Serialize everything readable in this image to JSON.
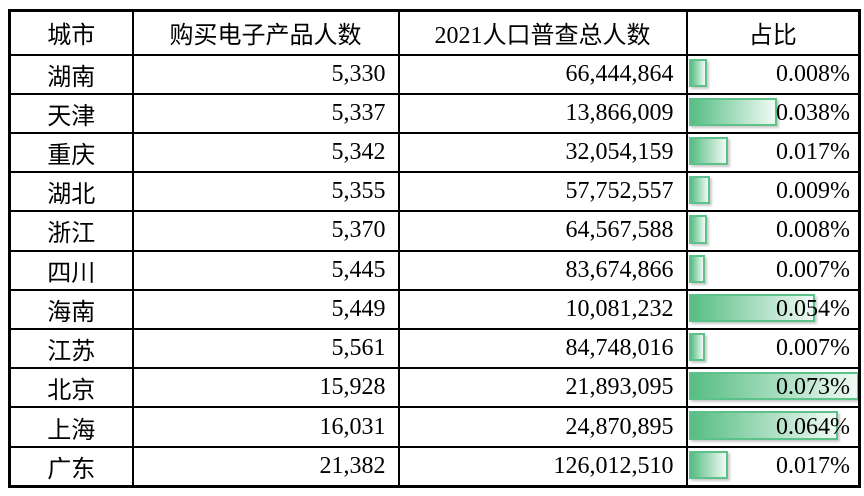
{
  "page": {
    "background_color": "#ffffff",
    "text_color": "#000000",
    "grid_color": "#000000"
  },
  "table": {
    "columns": [
      {
        "key": "city",
        "label": "城市"
      },
      {
        "key": "buyers",
        "label": "购买电子产品人数"
      },
      {
        "key": "population",
        "label": "2021人口普查总人数"
      },
      {
        "key": "share",
        "label": "占比"
      }
    ],
    "rows": [
      {
        "city": "湖南",
        "buyers": "5,330",
        "population": "66,444,864",
        "share_label": "0.008%",
        "share_value": 0.008
      },
      {
        "city": "天津",
        "buyers": "5,337",
        "population": "13,866,009",
        "share_label": "0.038%",
        "share_value": 0.038
      },
      {
        "city": "重庆",
        "buyers": "5,342",
        "population": "32,054,159",
        "share_label": "0.017%",
        "share_value": 0.017
      },
      {
        "city": "湖北",
        "buyers": "5,355",
        "population": "57,752,557",
        "share_label": "0.009%",
        "share_value": 0.009
      },
      {
        "city": "浙江",
        "buyers": "5,370",
        "population": "64,567,588",
        "share_label": "0.008%",
        "share_value": 0.008
      },
      {
        "city": "四川",
        "buyers": "5,445",
        "population": "83,674,866",
        "share_label": "0.007%",
        "share_value": 0.007
      },
      {
        "city": "海南",
        "buyers": "5,449",
        "population": "10,081,232",
        "share_label": "0.054%",
        "share_value": 0.054
      },
      {
        "city": "江苏",
        "buyers": "5,561",
        "population": "84,748,016",
        "share_label": "0.007%",
        "share_value": 0.007
      },
      {
        "city": "北京",
        "buyers": "15,928",
        "population": "21,893,095",
        "share_label": "0.073%",
        "share_value": 0.073
      },
      {
        "city": "上海",
        "buyers": "16,031",
        "population": "24,870,895",
        "share_label": "0.064%",
        "share_value": 0.064
      },
      {
        "city": "广东",
        "buyers": "21,382",
        "population": "126,012,510",
        "share_label": "0.017%",
        "share_value": 0.017
      }
    ],
    "databar": {
      "border_color": "#5CC289",
      "fill_start_color": "#57BD83",
      "fill_end_color": "#F0FAF4",
      "max_value": 0.073
    }
  },
  "chart_data": {
    "type": "table",
    "title": "",
    "columns": [
      "城市",
      "购买电子产品人数",
      "2021人口普查总人数",
      "占比"
    ],
    "rows": [
      [
        "湖南",
        5330,
        66444864,
        "0.008%"
      ],
      [
        "天津",
        5337,
        13866009,
        "0.038%"
      ],
      [
        "重庆",
        5342,
        32054159,
        "0.017%"
      ],
      [
        "湖北",
        5355,
        57752557,
        "0.009%"
      ],
      [
        "浙江",
        5370,
        64567588,
        "0.008%"
      ],
      [
        "四川",
        5445,
        83674866,
        "0.007%"
      ],
      [
        "海南",
        5449,
        10081232,
        "0.054%"
      ],
      [
        "江苏",
        5561,
        84748016,
        "0.007%"
      ],
      [
        "北京",
        15928,
        21893095,
        "0.073%"
      ],
      [
        "上海",
        16031,
        24870895,
        "0.064%"
      ],
      [
        "广东",
        21382,
        126012510,
        "0.017%"
      ]
    ],
    "databar_column": "占比",
    "databar_values_pct": [
      0.008,
      0.038,
      0.017,
      0.009,
      0.008,
      0.007,
      0.054,
      0.007,
      0.073,
      0.064,
      0.017
    ],
    "databar_scale": {
      "min": 0,
      "max": 0.073
    },
    "databar_style": "green gradient bar with green border, left-aligned in cell"
  }
}
